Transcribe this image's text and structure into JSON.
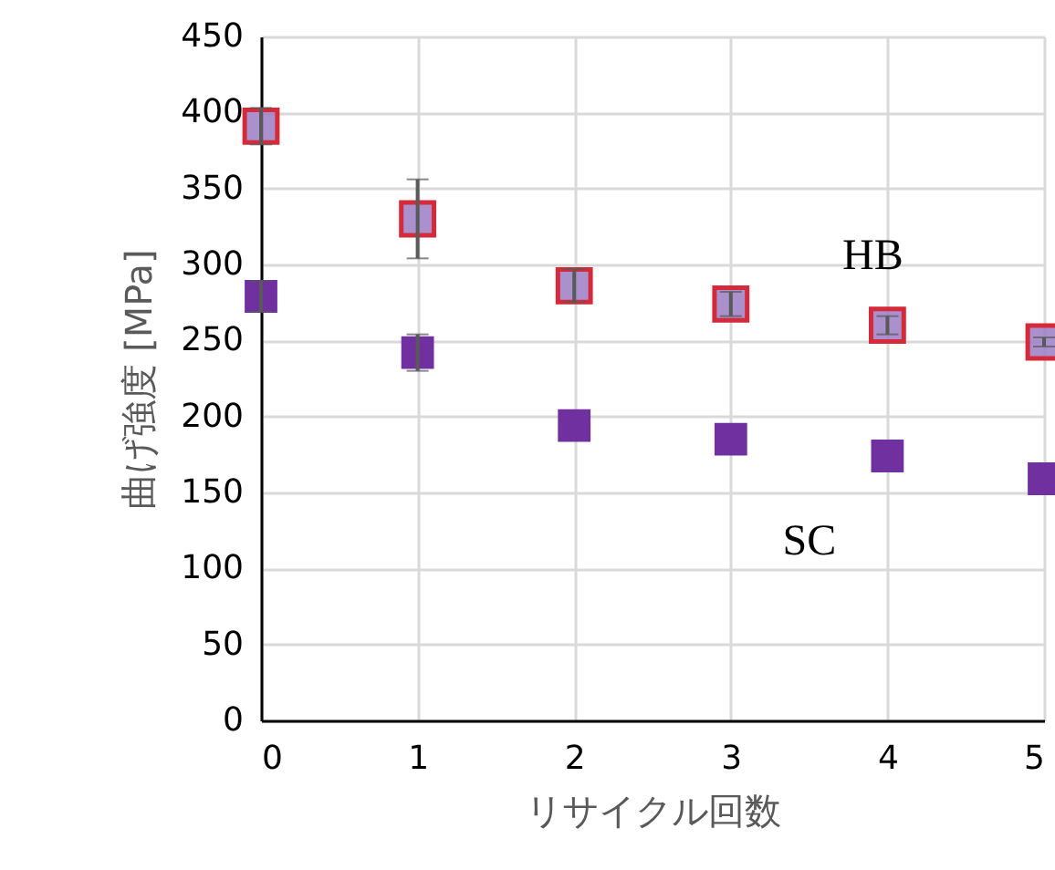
{
  "chart_data": {
    "type": "scatter",
    "xlabel": "リサイクル回数",
    "ylabel": "曲げ強度 [MPa]",
    "x": [
      0,
      1,
      2,
      3,
      4,
      5
    ],
    "xlim": [
      0,
      5
    ],
    "xticks": [
      0,
      1,
      2,
      3,
      4,
      5
    ],
    "ylim": [
      0,
      450
    ],
    "yticks": [
      0,
      50,
      100,
      150,
      200,
      250,
      300,
      350,
      400,
      450
    ],
    "grid": true,
    "marker": "square",
    "series": [
      {
        "name": "HB",
        "color": "#9b7cc4",
        "values": [
          391,
          330,
          286,
          274,
          260,
          249
        ],
        "errors": [
          12,
          [
            304,
            356
          ],
          11,
          8,
          6,
          3
        ]
      },
      {
        "name": "SC",
        "color": "#7030a0",
        "values": [
          279,
          242,
          194,
          185,
          174,
          159
        ],
        "errors": [
          10,
          12,
          null,
          null,
          null,
          null
        ]
      }
    ]
  }
}
